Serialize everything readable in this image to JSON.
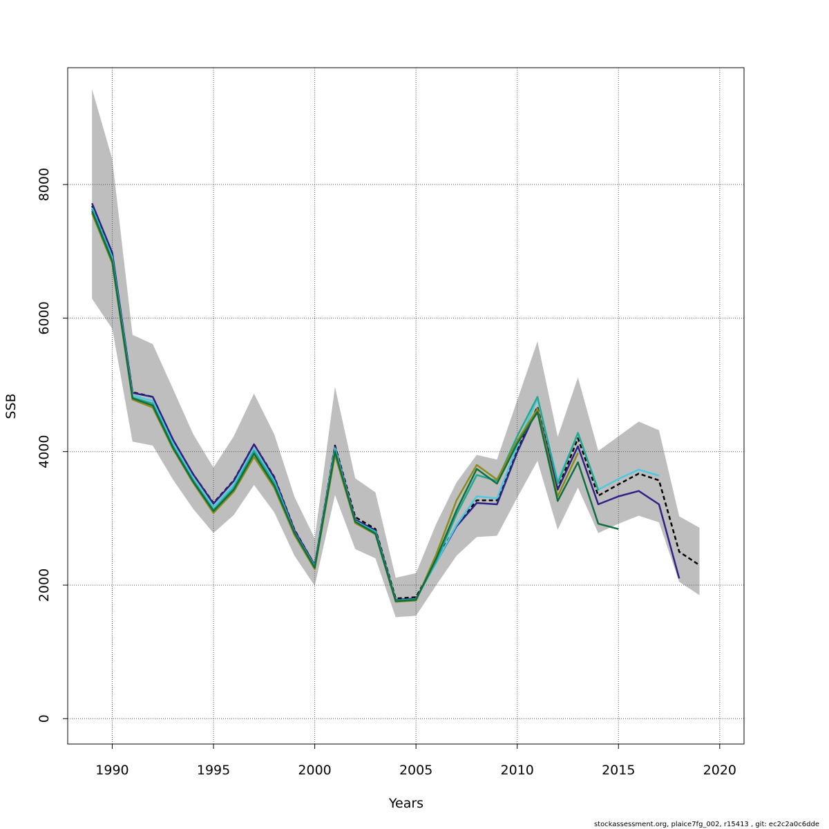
{
  "footer": "stockassessment.org, plaice7fg_002, r15413 , git: ec2c2a0c6dde",
  "chart_data": {
    "type": "line",
    "title": "",
    "xlabel": "Years",
    "ylabel": "SSB",
    "xlim": [
      1987.8,
      2021.2
    ],
    "ylim": [
      -380,
      9750
    ],
    "x_ticks": [
      1990,
      1995,
      2000,
      2005,
      2010,
      2015,
      2020
    ],
    "y_ticks": [
      0,
      2000,
      4000,
      6000,
      8000
    ],
    "grid": true,
    "confidence_band": {
      "years": [
        1989,
        1990,
        1991,
        1992,
        1993,
        1994,
        1995,
        1996,
        1997,
        1998,
        1999,
        2000,
        2001,
        2002,
        2003,
        2004,
        2005,
        2006,
        2007,
        2008,
        2009,
        2010,
        2011,
        2012,
        2013,
        2014,
        2015,
        2016,
        2017,
        2018,
        2019
      ],
      "lower": [
        6290,
        5840,
        4150,
        4090,
        3580,
        3140,
        2780,
        3050,
        3500,
        3090,
        2440,
        1990,
        3350,
        2540,
        2400,
        1520,
        1540,
        2000,
        2440,
        2720,
        2740,
        3310,
        3860,
        2830,
        3460,
        2780,
        2920,
        3040,
        2940,
        2050,
        1850
      ],
      "upper": [
        9430,
        8380,
        5750,
        5610,
        4940,
        4260,
        3760,
        4230,
        4870,
        4260,
        3320,
        2700,
        4970,
        3600,
        3390,
        2110,
        2180,
        2920,
        3540,
        3950,
        3880,
        4770,
        5650,
        4220,
        5110,
        4010,
        4230,
        4450,
        4320,
        3030,
        2860
      ],
      "color": "#bebebe"
    },
    "series": [
      {
        "color": "#000000",
        "dashed": true,
        "x": [
          1989,
          1990,
          1991,
          1992,
          1993,
          1994,
          1995,
          1996,
          1997,
          1998,
          1999,
          2000,
          2001,
          2002,
          2003,
          2004,
          2005,
          2006,
          2007,
          2008,
          2009,
          2010,
          2011,
          2012,
          2013,
          2014,
          2015,
          2016,
          2017,
          2018,
          2019
        ],
        "y": [
          7680,
          6950,
          4890,
          4820,
          4180,
          3660,
          3230,
          3570,
          4110,
          3620,
          2830,
          2300,
          4090,
          3020,
          2840,
          1800,
          1820,
          2380,
          2890,
          3270,
          3270,
          4020,
          4670,
          3440,
          4200,
          3340,
          3510,
          3670,
          3570,
          2500,
          2300
        ]
      },
      {
        "color": "#2e2185",
        "dashed": false,
        "x": [
          1989,
          1990,
          1991,
          1992,
          1993,
          1994,
          1995,
          1996,
          1997,
          1998,
          1999,
          2000,
          2001,
          2002,
          2003,
          2004,
          2005,
          2006,
          2007,
          2008,
          2009,
          2010,
          2011,
          2012,
          2013,
          2014,
          2015,
          2016,
          2017,
          2018
        ],
        "y": [
          7720,
          6980,
          4880,
          4820,
          4180,
          3660,
          3220,
          3560,
          4110,
          3610,
          2820,
          2300,
          4070,
          2980,
          2820,
          1780,
          1800,
          2340,
          2880,
          3230,
          3210,
          3990,
          4650,
          3430,
          4080,
          3210,
          3330,
          3410,
          3210,
          2100
        ]
      },
      {
        "color": "#4cc9e0",
        "dashed": false,
        "x": [
          1989,
          1990,
          1991,
          1992,
          1993,
          1994,
          1995,
          1996,
          1997,
          1998,
          1999,
          2000,
          2001,
          2002,
          2003,
          2004,
          2005,
          2006,
          2007,
          2008,
          2009,
          2010,
          2011,
          2012,
          2013,
          2014,
          2015,
          2016,
          2017
        ],
        "y": [
          7650,
          6910,
          4840,
          4760,
          4120,
          3600,
          3170,
          3500,
          4040,
          3560,
          2790,
          2280,
          4050,
          2960,
          2800,
          1770,
          1790,
          2340,
          2900,
          3330,
          3300,
          4080,
          4800,
          3560,
          4270,
          3430,
          3590,
          3730,
          3640
        ]
      },
      {
        "color": "#25a890",
        "dashed": false,
        "x": [
          1989,
          1990,
          1991,
          1992,
          1993,
          1994,
          1995,
          1996,
          1997,
          1998,
          1999,
          2000,
          2001,
          2002,
          2003,
          2004,
          2005,
          2006,
          2007,
          2008,
          2009,
          2010,
          2011,
          2012,
          2013,
          2014
        ],
        "y": [
          7630,
          6880,
          4810,
          4720,
          4080,
          3570,
          3130,
          3460,
          4010,
          3530,
          2780,
          2270,
          4020,
          2950,
          2790,
          1770,
          1790,
          2360,
          3060,
          3650,
          3560,
          4230,
          4820,
          3520,
          4280,
          3420
        ]
      },
      {
        "color": "#8b8b1a",
        "dashed": false,
        "x": [
          1989,
          1990,
          1991,
          1992,
          1993,
          1994,
          1995,
          1996,
          1997,
          1998,
          1999,
          2000,
          2001,
          2002,
          2003,
          2004,
          2005,
          2006,
          2007,
          2008,
          2009,
          2010,
          2011,
          2012,
          2013
        ],
        "y": [
          7570,
          6820,
          4780,
          4660,
          4040,
          3530,
          3080,
          3400,
          3920,
          3460,
          2750,
          2240,
          3950,
          2930,
          2760,
          1750,
          1770,
          2460,
          3270,
          3800,
          3580,
          4160,
          4640,
          3330,
          3980
        ]
      },
      {
        "color": "#0e6e3e",
        "dashed": false,
        "x": [
          1989,
          1990,
          1991,
          1992,
          1993,
          1994,
          1995,
          1996,
          1997,
          1998,
          1999,
          2000,
          2001,
          2002,
          2003,
          2004,
          2005,
          2006,
          2007,
          2008,
          2009,
          2010,
          2011,
          2012,
          2013,
          2014,
          2015
        ],
        "y": [
          7600,
          6850,
          4800,
          4690,
          4060,
          3550,
          3110,
          3430,
          3970,
          3490,
          2780,
          2260,
          4000,
          2950,
          2770,
          1760,
          1780,
          2400,
          3120,
          3740,
          3520,
          4120,
          4590,
          3260,
          3840,
          2920,
          2840
        ]
      }
    ]
  }
}
